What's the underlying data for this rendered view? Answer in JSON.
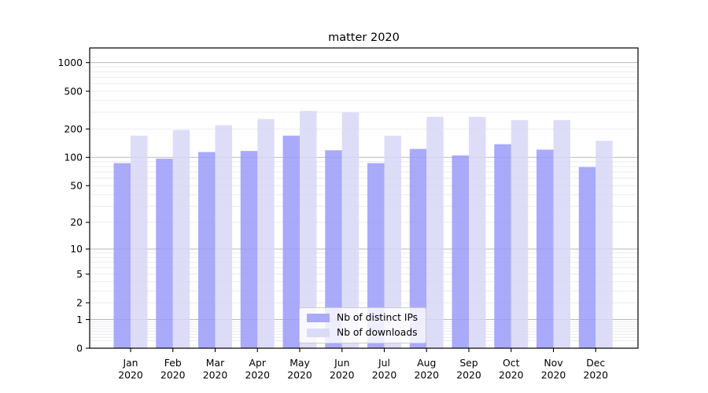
{
  "chart_data": {
    "type": "bar",
    "title": "matter 2020",
    "xlabel": "",
    "ylabel": "",
    "yscale": "log1p",
    "ylim": [
      0,
      1425
    ],
    "y_ticks": [
      0,
      1,
      2,
      5,
      10,
      20,
      50,
      100,
      200,
      500,
      1000
    ],
    "y_grid": {
      "major": [
        1,
        10,
        100,
        1000
      ],
      "minor": [
        0.2,
        0.3,
        0.4,
        0.5,
        0.6,
        0.7,
        0.8,
        0.9,
        2,
        3,
        4,
        5,
        6,
        7,
        8,
        9,
        20,
        30,
        40,
        50,
        60,
        70,
        80,
        90,
        200,
        300,
        400,
        500,
        600,
        700,
        800,
        900
      ]
    },
    "grid_on": true,
    "legend_position": "lower center",
    "categories": [
      {
        "month": "Jan",
        "year": "2020"
      },
      {
        "month": "Feb",
        "year": "2020"
      },
      {
        "month": "Mar",
        "year": "2020"
      },
      {
        "month": "Apr",
        "year": "2020"
      },
      {
        "month": "May",
        "year": "2020"
      },
      {
        "month": "Jun",
        "year": "2020"
      },
      {
        "month": "Jul",
        "year": "2020"
      },
      {
        "month": "Aug",
        "year": "2020"
      },
      {
        "month": "Sep",
        "year": "2020"
      },
      {
        "month": "Oct",
        "year": "2020"
      },
      {
        "month": "Nov",
        "year": "2020"
      },
      {
        "month": "Dec",
        "year": "2020"
      }
    ],
    "series": [
      {
        "name": "Nb of distinct IPs",
        "key": "distinct-ips",
        "fill": "rgba(155,155,249,0.85)",
        "swatch": "#aaaaf8",
        "values": [
          87,
          97,
          114,
          117,
          170,
          119,
          87,
          123,
          105,
          138,
          121,
          79
        ]
      },
      {
        "name": "Nb of downloads",
        "key": "downloads",
        "fill": "rgba(215,215,247,0.85)",
        "swatch": "#dbdbf8",
        "values": [
          170,
          195,
          219,
          255,
          310,
          300,
          170,
          269,
          269,
          249,
          249,
          150
        ]
      }
    ],
    "colors": {
      "grid_major": "#b9b9b9",
      "grid_minor": "#ececf1",
      "axis": "#000000",
      "text": "#000000",
      "legend_border": "#cccccc",
      "legend_bg": "rgba(255,255,255,0.8)"
    }
  }
}
